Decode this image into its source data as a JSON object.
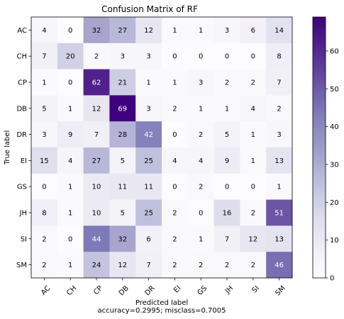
{
  "chart_data": {
    "type": "heatmap",
    "title": "Confusion Matrix of RF",
    "xlabel": "Predicted label",
    "ylabel": "True label",
    "footer": "accuracy=0.2995; misclass=0.7005",
    "x_categories": [
      "AC",
      "CH",
      "CP",
      "DB",
      "DR",
      "EI",
      "GS",
      "JH",
      "SI",
      "SM"
    ],
    "y_categories": [
      "AC",
      "CH",
      "CP",
      "DB",
      "DR",
      "EI",
      "GS",
      "JH",
      "SI",
      "SM"
    ],
    "values": [
      [
        4,
        0,
        32,
        27,
        12,
        1,
        1,
        3,
        6,
        14
      ],
      [
        7,
        20,
        2,
        3,
        3,
        0,
        0,
        0,
        0,
        8
      ],
      [
        1,
        0,
        62,
        21,
        1,
        1,
        3,
        2,
        2,
        7
      ],
      [
        5,
        1,
        12,
        69,
        3,
        2,
        1,
        1,
        4,
        2
      ],
      [
        3,
        9,
        7,
        28,
        42,
        0,
        2,
        5,
        1,
        3
      ],
      [
        15,
        4,
        27,
        5,
        25,
        4,
        4,
        9,
        1,
        13
      ],
      [
        0,
        1,
        10,
        11,
        11,
        0,
        2,
        0,
        0,
        1
      ],
      [
        8,
        1,
        10,
        5,
        25,
        2,
        0,
        16,
        2,
        51
      ],
      [
        2,
        0,
        44,
        32,
        6,
        2,
        1,
        7,
        12,
        13
      ],
      [
        2,
        1,
        24,
        12,
        7,
        2,
        2,
        2,
        2,
        46
      ]
    ],
    "colormap": "Purples",
    "vmin": 0,
    "vmax": 69,
    "colorbar_ticks": [
      0,
      10,
      20,
      30,
      40,
      50,
      60
    ],
    "grid": false,
    "legend": "colorbar-right"
  }
}
